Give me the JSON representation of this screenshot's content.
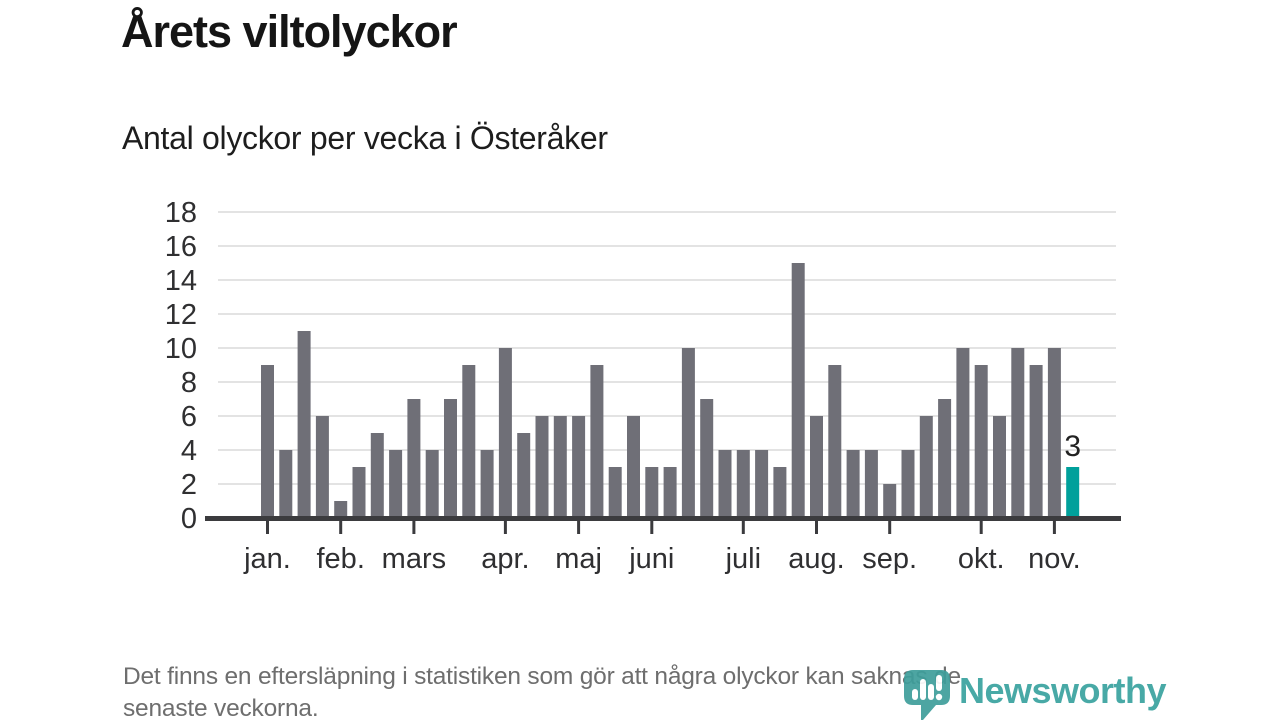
{
  "chart_data": {
    "type": "bar",
    "title": "Årets viltolyckor",
    "subtitle": "Antal olyckor per vecka i Österåker",
    "xlabel": "",
    "ylabel": "Antal olyckor per vecka",
    "ylim": [
      0,
      18
    ],
    "y_ticks": [
      0,
      2,
      4,
      6,
      8,
      10,
      12,
      14,
      16,
      18
    ],
    "grid": true,
    "legend": "none",
    "categories_unit": "vecka",
    "values": [
      9,
      4,
      11,
      6,
      1,
      3,
      5,
      4,
      7,
      4,
      7,
      9,
      4,
      10,
      5,
      6,
      6,
      6,
      9,
      3,
      6,
      3,
      3,
      10,
      7,
      4,
      4,
      4,
      3,
      15,
      6,
      9,
      4,
      4,
      2,
      4,
      6,
      7,
      10,
      9,
      6,
      10,
      9,
      10,
      3
    ],
    "month_ticks": [
      {
        "label": "jan.",
        "week_index": 0
      },
      {
        "label": "feb.",
        "week_index": 4
      },
      {
        "label": "mars",
        "week_index": 8
      },
      {
        "label": "apr.",
        "week_index": 13
      },
      {
        "label": "maj",
        "week_index": 17
      },
      {
        "label": "juni",
        "week_index": 21
      },
      {
        "label": "juli",
        "week_index": 26
      },
      {
        "label": "aug.",
        "week_index": 30
      },
      {
        "label": "sep.",
        "week_index": 34
      },
      {
        "label": "okt.",
        "week_index": 39
      },
      {
        "label": "nov.",
        "week_index": 43
      }
    ],
    "highlight_index": 44,
    "highlight_value_label": "3",
    "colors": {
      "bar": "#6F6F77",
      "highlight": "#00A09B",
      "axis": "#3B3B3E",
      "gridline": "#E3E3E3",
      "tick_label": "#2F2F31",
      "value_label": "#222222"
    }
  },
  "footer": {
    "line1": "Det finns en eftersläpning i statistiken som gör att några olyckor kan saknas de",
    "line2": "senaste veckorna."
  },
  "logo": {
    "text": "Newsworthy",
    "color": "#2F9E9A"
  }
}
